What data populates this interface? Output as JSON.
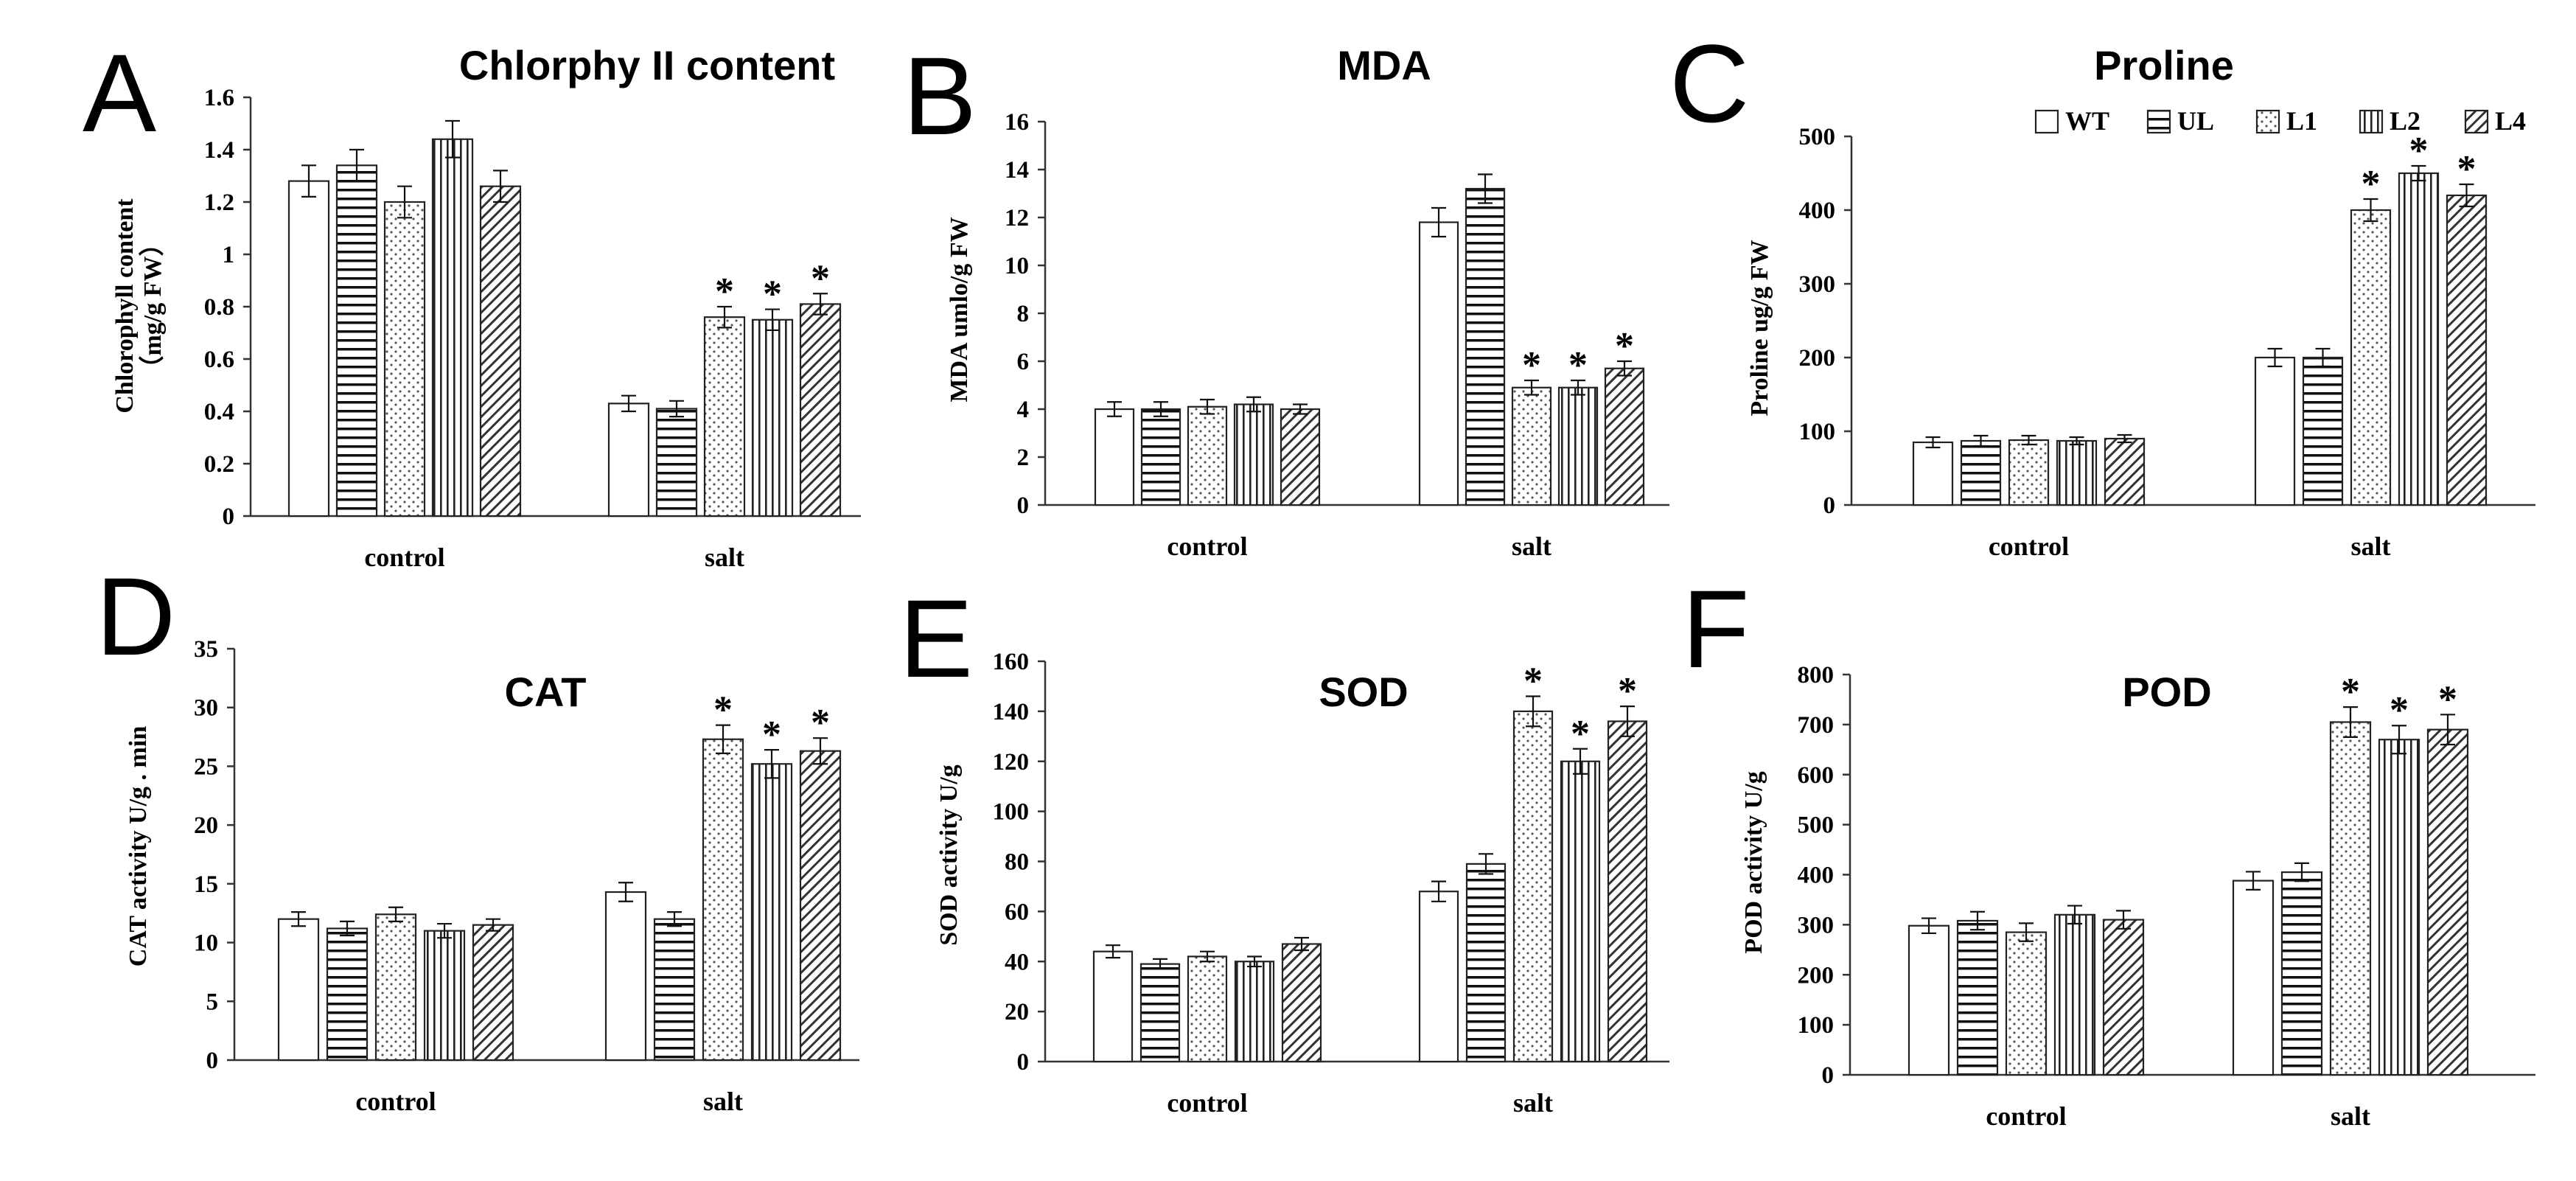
{
  "legend": {
    "entries": [
      {
        "name": "WT",
        "pattern": "white"
      },
      {
        "name": "UL",
        "pattern": "hlines"
      },
      {
        "name": "L1",
        "pattern": "dots"
      },
      {
        "name": "L2",
        "pattern": "vlines"
      },
      {
        "name": "L4",
        "pattern": "diag"
      }
    ],
    "placement": "top-right of panel C"
  },
  "chart_data": [
    {
      "panel": "A",
      "type": "bar",
      "title": "Chlorphy II content",
      "ylabel_line1": "Chlorophyll content",
      "ylabel_line2": "（mg/g FW）",
      "categories": [
        "control",
        "salt"
      ],
      "ylim": [
        0,
        1.6
      ],
      "ticks": [
        "0",
        "0.2",
        "0.4",
        "0.6",
        "0.8",
        "1",
        "1.2",
        "1.4",
        "1.6"
      ],
      "series": [
        {
          "name": "WT",
          "values": [
            1.28,
            0.43
          ],
          "errors": [
            0.06,
            0.03
          ]
        },
        {
          "name": "UL",
          "values": [
            1.34,
            0.41
          ],
          "errors": [
            0.06,
            0.03
          ]
        },
        {
          "name": "L1",
          "values": [
            1.2,
            0.76
          ],
          "errors": [
            0.06,
            0.04
          ]
        },
        {
          "name": "L2",
          "values": [
            1.44,
            0.75
          ],
          "errors": [
            0.07,
            0.04
          ]
        },
        {
          "name": "L4",
          "values": [
            1.26,
            0.81
          ],
          "errors": [
            0.06,
            0.04
          ]
        }
      ],
      "significant": [
        [
          false,
          false
        ],
        [
          false,
          false
        ],
        [
          false,
          true
        ],
        [
          false,
          true
        ],
        [
          false,
          true
        ]
      ]
    },
    {
      "panel": "B",
      "type": "bar",
      "title": "MDA",
      "ylabel_line1": "MDA umlo/g  FW",
      "ylabel_line2": "",
      "categories": [
        "control",
        "salt"
      ],
      "ylim": [
        0,
        16
      ],
      "ticks": [
        "0",
        "2",
        "4",
        "6",
        "8",
        "10",
        "12",
        "14",
        "16"
      ],
      "series": [
        {
          "name": "WT",
          "values": [
            4.0,
            11.8
          ],
          "errors": [
            0.3,
            0.6
          ]
        },
        {
          "name": "UL",
          "values": [
            4.0,
            13.2
          ],
          "errors": [
            0.3,
            0.6
          ]
        },
        {
          "name": "L1",
          "values": [
            4.1,
            4.9
          ],
          "errors": [
            0.3,
            0.3
          ]
        },
        {
          "name": "L2",
          "values": [
            4.2,
            4.9
          ],
          "errors": [
            0.3,
            0.3
          ]
        },
        {
          "name": "L4",
          "values": [
            4.0,
            5.7
          ],
          "errors": [
            0.2,
            0.3
          ]
        }
      ],
      "significant": [
        [
          false,
          false
        ],
        [
          false,
          false
        ],
        [
          false,
          true
        ],
        [
          false,
          true
        ],
        [
          false,
          true
        ]
      ]
    },
    {
      "panel": "C",
      "type": "bar",
      "title": "Proline",
      "ylabel_line1": "Proline ug/g FW",
      "ylabel_line2": "",
      "categories": [
        "control",
        "salt"
      ],
      "ylim": [
        0,
        500
      ],
      "ticks": [
        "0",
        "100",
        "200",
        "300",
        "400",
        "500"
      ],
      "series": [
        {
          "name": "WT",
          "values": [
            85,
            200
          ],
          "errors": [
            7,
            12
          ]
        },
        {
          "name": "UL",
          "values": [
            87,
            200
          ],
          "errors": [
            7,
            12
          ]
        },
        {
          "name": "L1",
          "values": [
            88,
            400
          ],
          "errors": [
            6,
            15
          ]
        },
        {
          "name": "L2",
          "values": [
            87,
            450
          ],
          "errors": [
            5,
            10
          ]
        },
        {
          "name": "L4",
          "values": [
            90,
            420
          ],
          "errors": [
            5,
            15
          ]
        }
      ],
      "significant": [
        [
          false,
          false
        ],
        [
          false,
          false
        ],
        [
          false,
          true
        ],
        [
          false,
          true
        ],
        [
          false,
          true
        ]
      ]
    },
    {
      "panel": "D",
      "type": "bar",
      "title": "CAT",
      "ylabel_line1": "CAT activity U/g . min",
      "ylabel_line2": "",
      "categories": [
        "control",
        "salt"
      ],
      "ylim": [
        0,
        35
      ],
      "ticks": [
        "0",
        "5",
        "10",
        "15",
        "20",
        "25",
        "30",
        "35"
      ],
      "series": [
        {
          "name": "WT",
          "values": [
            12.0,
            14.3
          ],
          "errors": [
            0.6,
            0.8
          ]
        },
        {
          "name": "UL",
          "values": [
            11.2,
            12.0
          ],
          "errors": [
            0.6,
            0.6
          ]
        },
        {
          "name": "L1",
          "values": [
            12.4,
            27.3
          ],
          "errors": [
            0.6,
            1.2
          ]
        },
        {
          "name": "L2",
          "values": [
            11.0,
            25.2
          ],
          "errors": [
            0.6,
            1.2
          ]
        },
        {
          "name": "L4",
          "values": [
            11.5,
            26.3
          ],
          "errors": [
            0.5,
            1.1
          ]
        }
      ],
      "significant": [
        [
          false,
          false
        ],
        [
          false,
          false
        ],
        [
          false,
          true
        ],
        [
          false,
          true
        ],
        [
          false,
          true
        ]
      ]
    },
    {
      "panel": "E",
      "type": "bar",
      "title": "SOD",
      "ylabel_line1": "SOD activity  U/g",
      "ylabel_line2": "",
      "categories": [
        "control",
        "salt"
      ],
      "ylim": [
        0,
        160
      ],
      "ticks": [
        "0",
        "20",
        "40",
        "60",
        "80",
        "100",
        "120",
        "140",
        "160"
      ],
      "series": [
        {
          "name": "WT",
          "values": [
            44,
            68
          ],
          "errors": [
            2.5,
            4
          ]
        },
        {
          "name": "UL",
          "values": [
            39,
            79
          ],
          "errors": [
            2,
            4
          ]
        },
        {
          "name": "L1",
          "values": [
            42,
            140
          ],
          "errors": [
            2,
            6
          ]
        },
        {
          "name": "L2",
          "values": [
            40,
            120
          ],
          "errors": [
            2,
            5
          ]
        },
        {
          "name": "L4",
          "values": [
            47,
            136
          ],
          "errors": [
            2.5,
            6
          ]
        }
      ],
      "significant": [
        [
          false,
          false
        ],
        [
          false,
          false
        ],
        [
          false,
          true
        ],
        [
          false,
          true
        ],
        [
          false,
          true
        ]
      ]
    },
    {
      "panel": "F",
      "type": "bar",
      "title": "POD",
      "ylabel_line1": "POD activity  U/g",
      "ylabel_line2": "",
      "categories": [
        "control",
        "salt"
      ],
      "ylim": [
        0,
        800
      ],
      "ticks": [
        "0",
        "100",
        "200",
        "300",
        "400",
        "500",
        "600",
        "700",
        "800"
      ],
      "series": [
        {
          "name": "WT",
          "values": [
            298,
            388
          ],
          "errors": [
            15,
            18
          ]
        },
        {
          "name": "UL",
          "values": [
            308,
            405
          ],
          "errors": [
            18,
            18
          ]
        },
        {
          "name": "L1",
          "values": [
            285,
            705
          ],
          "errors": [
            18,
            30
          ]
        },
        {
          "name": "L2",
          "values": [
            320,
            670
          ],
          "errors": [
            18,
            28
          ]
        },
        {
          "name": "L4",
          "values": [
            310,
            690
          ],
          "errors": [
            18,
            30
          ]
        }
      ],
      "significant": [
        [
          false,
          false
        ],
        [
          false,
          false
        ],
        [
          false,
          true
        ],
        [
          false,
          true
        ],
        [
          false,
          true
        ]
      ]
    }
  ]
}
